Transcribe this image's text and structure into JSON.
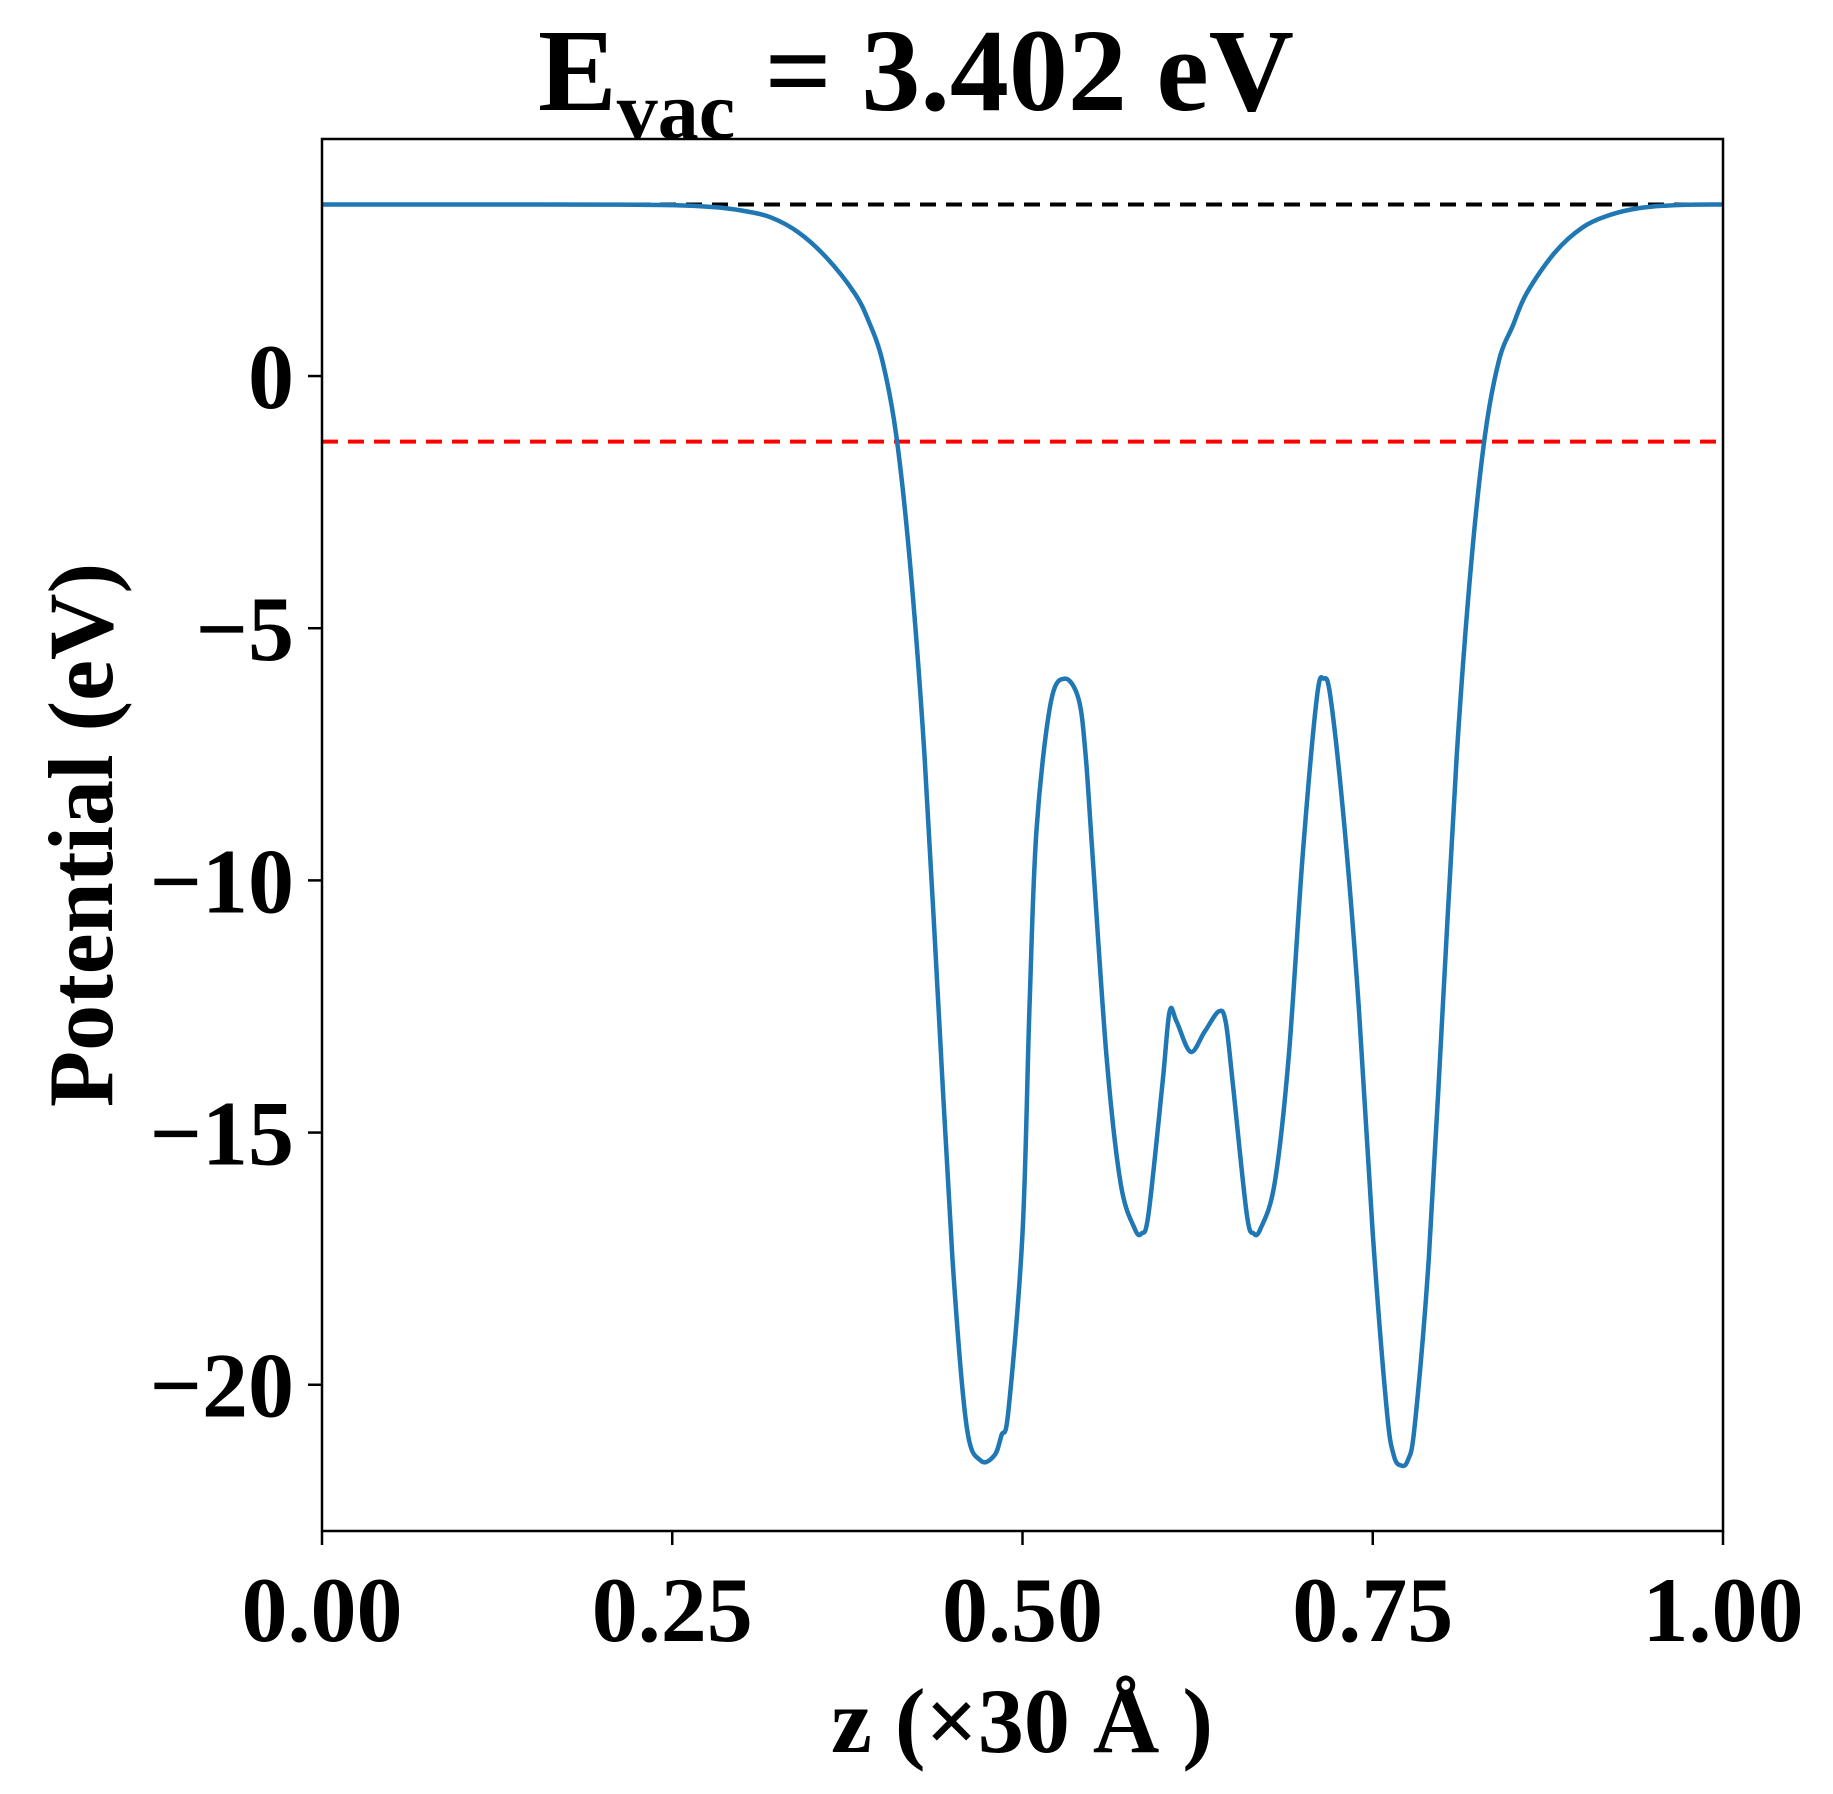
{
  "chart_data": {
    "type": "line",
    "title": {
      "main": "E",
      "subscript": "vac",
      "rest": " = 3.402 eV"
    },
    "xlabel": "z (×30 Å )",
    "ylabel": "Potential (eV)",
    "xlim": [
      0,
      1
    ],
    "ylim": [
      -22.9,
      4.7
    ],
    "grid": false,
    "legend": "none",
    "x_ticks": [
      {
        "value": 0.0,
        "label": "0.00"
      },
      {
        "value": 0.25,
        "label": "0.25"
      },
      {
        "value": 0.5,
        "label": "0.50"
      },
      {
        "value": 0.75,
        "label": "0.75"
      },
      {
        "value": 1.0,
        "label": "1.00"
      }
    ],
    "y_ticks": [
      {
        "value": 0,
        "label": "0"
      },
      {
        "value": -5,
        "label": "−5"
      },
      {
        "value": -10,
        "label": "−10"
      },
      {
        "value": -15,
        "label": "−15"
      },
      {
        "value": -20,
        "label": "−20"
      }
    ],
    "reference_lines": [
      {
        "y": 3.402,
        "color": "#000000",
        "style": "dashed"
      },
      {
        "y": -1.3,
        "color": "#ff0000",
        "style": "dashed"
      }
    ],
    "series": [
      {
        "color": "#1f77b4",
        "x": [
          0.0,
          0.05,
          0.1,
          0.15,
          0.2,
          0.25,
          0.28,
          0.3,
          0.32,
          0.34,
          0.36,
          0.38,
          0.39,
          0.4,
          0.41,
          0.42,
          0.43,
          0.44,
          0.45,
          0.46,
          0.47,
          0.48,
          0.485,
          0.49,
          0.5,
          0.505,
          0.51,
          0.52,
          0.53,
          0.54,
          0.545,
          0.55,
          0.56,
          0.57,
          0.58,
          0.585,
          0.59,
          0.6,
          0.605,
          0.61,
          0.62,
          0.63,
          0.64,
          0.645,
          0.65,
          0.66,
          0.665,
          0.67,
          0.68,
          0.69,
          0.7,
          0.71,
          0.715,
          0.72,
          0.73,
          0.74,
          0.75,
          0.76,
          0.765,
          0.77,
          0.775,
          0.78,
          0.79,
          0.8,
          0.81,
          0.82,
          0.83,
          0.84,
          0.85,
          0.86,
          0.88,
          0.9,
          0.92,
          0.94,
          0.96,
          0.98,
          1.0
        ],
        "y": [
          3.402,
          3.402,
          3.402,
          3.402,
          3.4,
          3.39,
          3.35,
          3.28,
          3.15,
          2.85,
          2.35,
          1.65,
          1.1,
          0.3,
          -1.2,
          -3.8,
          -7.5,
          -12.5,
          -17.5,
          -20.8,
          -21.5,
          -21.4,
          -21.0,
          -20.5,
          -17.0,
          -12.5,
          -9.0,
          -6.5,
          -6.0,
          -6.4,
          -7.5,
          -9.5,
          -13.5,
          -16.0,
          -16.9,
          -17.0,
          -16.6,
          -14.0,
          -12.6,
          -12.8,
          -13.4,
          -13.0,
          -12.6,
          -12.8,
          -14.0,
          -16.6,
          -17.0,
          -16.9,
          -16.0,
          -13.5,
          -9.5,
          -6.4,
          -6.0,
          -6.4,
          -9.0,
          -12.5,
          -17.0,
          -20.5,
          -21.4,
          -21.6,
          -21.5,
          -20.8,
          -17.5,
          -12.5,
          -7.5,
          -3.8,
          -1.2,
          0.3,
          1.0,
          1.65,
          2.45,
          2.95,
          3.2,
          3.33,
          3.38,
          3.4,
          3.402
        ]
      }
    ]
  }
}
